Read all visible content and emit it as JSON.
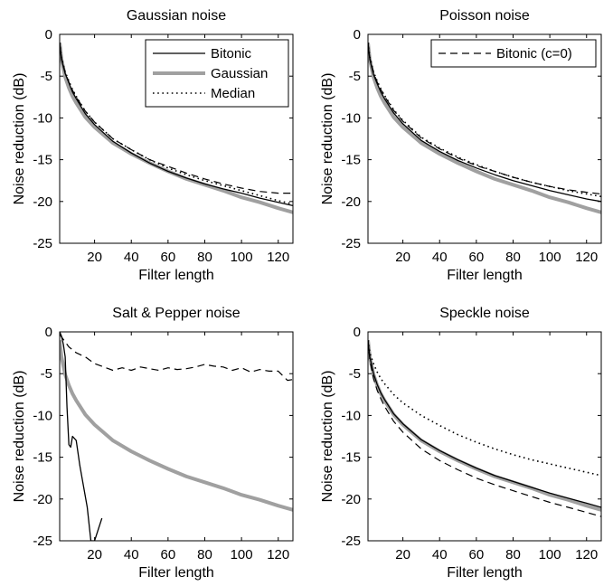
{
  "chart_data": [
    {
      "type": "line",
      "title": "Gaussian noise",
      "xlabel": "Filter length",
      "ylabel": "Noise reduction (dB)",
      "xlim": [
        1,
        128
      ],
      "ylim": [
        -25,
        0
      ],
      "xticks": [
        "20",
        "40",
        "60",
        "80",
        "100",
        "120"
      ],
      "yticks": [
        "0",
        "-5",
        "-10",
        "-15",
        "-20",
        "-25"
      ],
      "grid": false,
      "legend": {
        "placement": "top-right",
        "entries": [
          "Bitonic",
          "Gaussian",
          "Median"
        ]
      },
      "series": [
        {
          "name": "Bitonic",
          "style": "solid-thin",
          "x": [
            1,
            2,
            4,
            6,
            8,
            10,
            15,
            20,
            30,
            40,
            50,
            60,
            70,
            80,
            90,
            100,
            110,
            120,
            128
          ],
          "values": [
            -1,
            -3,
            -4.7,
            -5.8,
            -6.9,
            -7.7,
            -9.5,
            -10.8,
            -12.8,
            -14.2,
            -15.4,
            -16.4,
            -17.2,
            -17.9,
            -18.5,
            -19.0,
            -19.6,
            -20.1,
            -20.5
          ]
        },
        {
          "name": "Gaussian",
          "style": "solid-thick-gray",
          "x": [
            1,
            2,
            4,
            6,
            8,
            10,
            15,
            20,
            30,
            40,
            50,
            60,
            70,
            80,
            90,
            100,
            110,
            120,
            128
          ],
          "values": [
            -1,
            -3,
            -5.1,
            -6.4,
            -7.4,
            -8.2,
            -9.9,
            -11.1,
            -13.0,
            -14.3,
            -15.4,
            -16.4,
            -17.3,
            -18.0,
            -18.7,
            -19.5,
            -20.1,
            -20.8,
            -21.3
          ]
        },
        {
          "name": "Median",
          "style": "dotted",
          "x": [
            1,
            2,
            4,
            6,
            8,
            10,
            15,
            20,
            30,
            40,
            50,
            60,
            70,
            80,
            90,
            100,
            110,
            120,
            128
          ],
          "values": [
            -1,
            -2.8,
            -4.5,
            -5.6,
            -6.6,
            -7.4,
            -9.2,
            -10.5,
            -12.5,
            -13.8,
            -15.0,
            -16.0,
            -16.8,
            -17.5,
            -18.1,
            -18.7,
            -19.3,
            -19.9,
            -20.3
          ]
        },
        {
          "name": "",
          "style": "dashed",
          "x": [
            1,
            2,
            4,
            6,
            8,
            10,
            15,
            20,
            30,
            40,
            50,
            60,
            70,
            80,
            90,
            100,
            110,
            120,
            128
          ],
          "values": [
            -1,
            -2.8,
            -4.6,
            -5.7,
            -6.7,
            -7.5,
            -9.2,
            -10.5,
            -12.5,
            -13.8,
            -15.0,
            -15.8,
            -16.6,
            -17.3,
            -17.9,
            -18.4,
            -18.8,
            -19.0,
            -19.0
          ]
        }
      ]
    },
    {
      "type": "line",
      "title": "Poisson noise",
      "xlabel": "Filter length",
      "ylabel": "Noise reduction (dB)",
      "xlim": [
        1,
        128
      ],
      "ylim": [
        -25,
        0
      ],
      "xticks": [
        "20",
        "40",
        "60",
        "80",
        "100",
        "120"
      ],
      "yticks": [
        "0",
        "-5",
        "-10",
        "-15",
        "-20",
        "-25"
      ],
      "grid": false,
      "legend": {
        "placement": "top-right",
        "entries": [
          "Bitonic (c=0)"
        ]
      },
      "series": [
        {
          "name": "",
          "style": "solid-thin",
          "x": [
            1,
            2,
            4,
            6,
            8,
            10,
            15,
            20,
            30,
            40,
            50,
            60,
            70,
            80,
            90,
            100,
            110,
            120,
            128
          ],
          "values": [
            -1,
            -3,
            -4.8,
            -5.9,
            -6.9,
            -7.7,
            -9.4,
            -10.7,
            -12.7,
            -14.0,
            -15.1,
            -16.0,
            -16.8,
            -17.5,
            -18.1,
            -18.7,
            -19.2,
            -19.7,
            -20.0
          ]
        },
        {
          "name": "",
          "style": "solid-thick-gray",
          "x": [
            1,
            2,
            4,
            6,
            8,
            10,
            15,
            20,
            30,
            40,
            50,
            60,
            70,
            80,
            90,
            100,
            110,
            120,
            128
          ],
          "values": [
            -1,
            -3,
            -5.1,
            -6.4,
            -7.4,
            -8.2,
            -9.9,
            -11.1,
            -13.0,
            -14.3,
            -15.4,
            -16.4,
            -17.3,
            -18.0,
            -18.7,
            -19.5,
            -20.1,
            -20.8,
            -21.3
          ]
        },
        {
          "name": "",
          "style": "dotted",
          "x": [
            1,
            2,
            4,
            6,
            8,
            10,
            15,
            20,
            30,
            40,
            50,
            60,
            70,
            80,
            90,
            100,
            110,
            120,
            128
          ],
          "values": [
            -1,
            -2.7,
            -4.5,
            -5.6,
            -6.5,
            -7.3,
            -9.0,
            -10.3,
            -12.3,
            -13.6,
            -14.7,
            -15.6,
            -16.4,
            -17.1,
            -17.7,
            -18.2,
            -18.7,
            -19.1,
            -19.4
          ]
        },
        {
          "name": "Bitonic (c=0)",
          "style": "dashed",
          "x": [
            1,
            2,
            4,
            6,
            8,
            10,
            15,
            20,
            30,
            40,
            50,
            60,
            70,
            80,
            90,
            100,
            110,
            120,
            128
          ],
          "values": [
            -1,
            -2.8,
            -4.6,
            -5.7,
            -6.6,
            -7.4,
            -9.1,
            -10.4,
            -12.4,
            -13.7,
            -14.8,
            -15.7,
            -16.4,
            -17.1,
            -17.7,
            -18.2,
            -18.6,
            -18.9,
            -19.1
          ]
        }
      ]
    },
    {
      "type": "line",
      "title": "Salt & Pepper noise",
      "xlabel": "Filter length",
      "ylabel": "Noise reduction (dB)",
      "xlim": [
        1,
        128
      ],
      "ylim": [
        -25,
        0
      ],
      "xticks": [
        "20",
        "40",
        "60",
        "80",
        "100",
        "120"
      ],
      "yticks": [
        "0",
        "-5",
        "-10",
        "-15",
        "-20",
        "-25"
      ],
      "grid": false,
      "legend": null,
      "series": [
        {
          "name": "",
          "style": "solid-thin",
          "x": [
            1,
            2,
            3,
            4,
            5,
            6,
            7,
            8,
            10,
            12,
            14,
            16,
            18,
            20,
            24
          ],
          "values": [
            0,
            -0.5,
            -1.5,
            -3,
            -9,
            -13.5,
            -13.8,
            -12.5,
            -13.0,
            -16.0,
            -18.5,
            -21.0,
            -25.0,
            -25.0,
            -22.3
          ]
        },
        {
          "name": "",
          "style": "solid-thick-gray",
          "x": [
            1,
            2,
            4,
            6,
            8,
            10,
            15,
            20,
            30,
            40,
            50,
            60,
            70,
            80,
            90,
            100,
            110,
            120,
            128
          ],
          "values": [
            -1,
            -3,
            -5.1,
            -6.4,
            -7.4,
            -8.2,
            -9.9,
            -11.1,
            -13.0,
            -14.3,
            -15.4,
            -16.4,
            -17.3,
            -18.0,
            -18.7,
            -19.5,
            -20.1,
            -20.8,
            -21.3
          ]
        },
        {
          "name": "",
          "style": "dashed",
          "x": [
            1,
            2,
            4,
            6,
            10,
            15,
            20,
            25,
            30,
            35,
            40,
            45,
            50,
            55,
            60,
            65,
            70,
            75,
            80,
            85,
            90,
            95,
            100,
            105,
            110,
            115,
            120,
            125,
            128
          ],
          "values": [
            -0.3,
            -0.6,
            -1.2,
            -1.8,
            -2.5,
            -3.0,
            -3.8,
            -4.2,
            -4.6,
            -4.3,
            -4.6,
            -4.2,
            -4.4,
            -4.6,
            -4.3,
            -4.5,
            -4.4,
            -4.2,
            -3.9,
            -4.1,
            -4.2,
            -4.6,
            -4.3,
            -4.8,
            -4.5,
            -4.7,
            -4.7,
            -5.8,
            -5.7
          ]
        }
      ]
    },
    {
      "type": "line",
      "title": "Speckle noise",
      "xlabel": "Filter length",
      "ylabel": "Noise reduction (dB)",
      "xlim": [
        1,
        128
      ],
      "ylim": [
        -25,
        0
      ],
      "xticks": [
        "20",
        "40",
        "60",
        "80",
        "100",
        "120"
      ],
      "yticks": [
        "0",
        "-5",
        "-10",
        "-15",
        "-20",
        "-25"
      ],
      "grid": false,
      "legend": null,
      "series": [
        {
          "name": "",
          "style": "solid-thin",
          "x": [
            1,
            2,
            4,
            6,
            8,
            10,
            15,
            20,
            30,
            40,
            50,
            60,
            70,
            80,
            90,
            100,
            110,
            120,
            128
          ],
          "values": [
            -1,
            -3,
            -5.0,
            -6.3,
            -7.3,
            -8.1,
            -9.8,
            -11.0,
            -12.9,
            -14.2,
            -15.3,
            -16.3,
            -17.2,
            -17.9,
            -18.6,
            -19.3,
            -19.9,
            -20.5,
            -21.0
          ]
        },
        {
          "name": "",
          "style": "solid-thick-gray",
          "x": [
            1,
            2,
            4,
            6,
            8,
            10,
            15,
            20,
            30,
            40,
            50,
            60,
            70,
            80,
            90,
            100,
            110,
            120,
            128
          ],
          "values": [
            -1,
            -3,
            -5.1,
            -6.4,
            -7.4,
            -8.2,
            -9.9,
            -11.1,
            -13.0,
            -14.3,
            -15.4,
            -16.4,
            -17.3,
            -18.0,
            -18.7,
            -19.5,
            -20.1,
            -20.8,
            -21.3
          ]
        },
        {
          "name": "",
          "style": "dotted",
          "x": [
            1,
            2,
            4,
            6,
            8,
            10,
            15,
            20,
            30,
            40,
            50,
            60,
            70,
            80,
            90,
            100,
            110,
            120,
            128
          ],
          "values": [
            -1,
            -2.5,
            -3.8,
            -4.8,
            -5.6,
            -6.2,
            -7.5,
            -8.5,
            -10.0,
            -11.2,
            -12.3,
            -13.2,
            -14.0,
            -14.7,
            -15.3,
            -15.8,
            -16.3,
            -16.8,
            -17.2
          ]
        },
        {
          "name": "",
          "style": "dashed",
          "x": [
            1,
            2,
            4,
            6,
            8,
            10,
            15,
            20,
            30,
            40,
            50,
            60,
            70,
            80,
            90,
            100,
            110,
            120,
            128
          ],
          "values": [
            -1,
            -3.3,
            -5.6,
            -7.0,
            -8.0,
            -8.9,
            -10.7,
            -12.0,
            -14.0,
            -15.4,
            -16.5,
            -17.5,
            -18.3,
            -19.0,
            -19.7,
            -20.4,
            -21.0,
            -21.6,
            -22.1
          ]
        }
      ]
    }
  ],
  "colors": {
    "solid-thin": "#000000",
    "solid-thick-gray": "#a0a0a0",
    "dotted": "#000000",
    "dashed": "#000000"
  }
}
